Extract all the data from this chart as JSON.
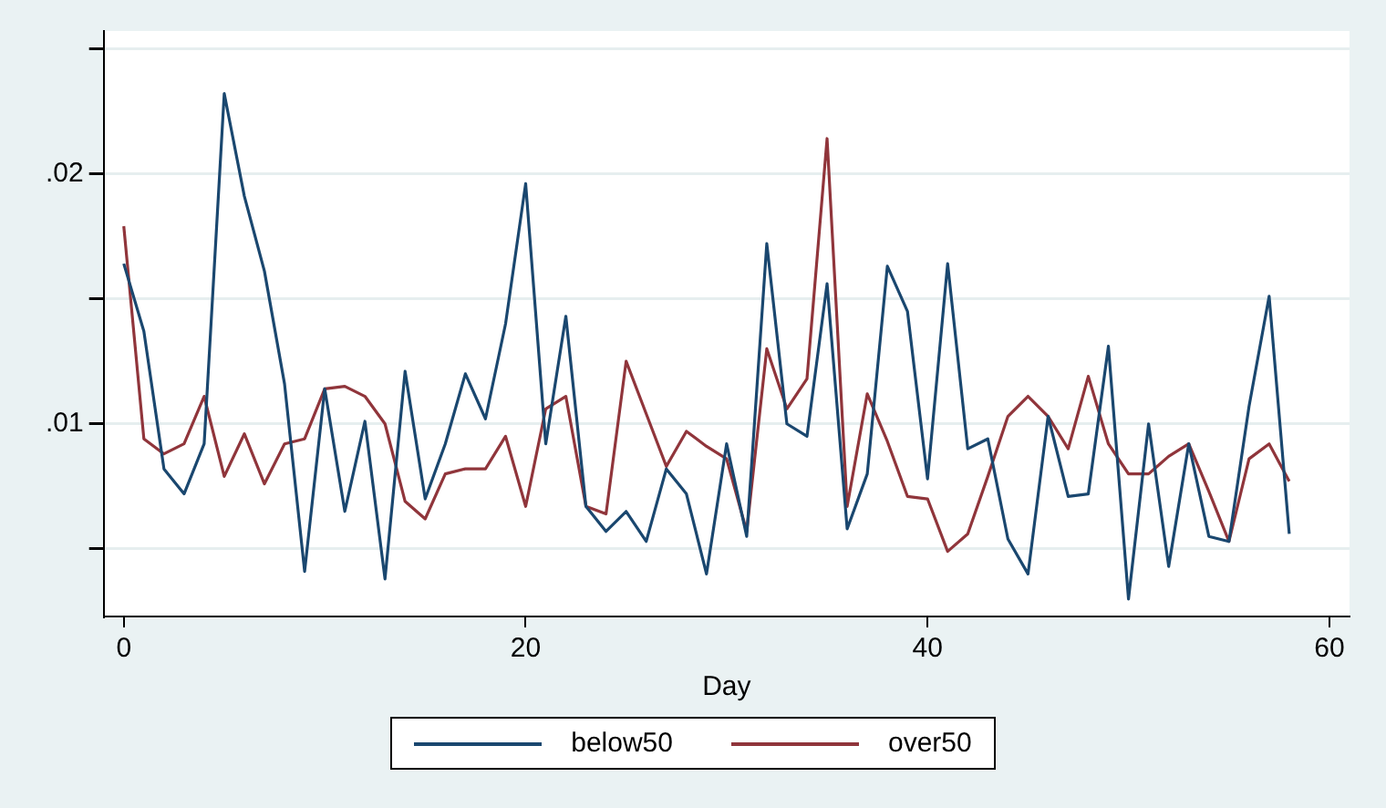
{
  "chart_data": {
    "type": "line",
    "xlabel": "Day",
    "x": [
      0,
      1,
      2,
      3,
      4,
      5,
      6,
      7,
      8,
      9,
      10,
      11,
      12,
      13,
      14,
      15,
      16,
      17,
      18,
      19,
      20,
      21,
      22,
      23,
      24,
      25,
      26,
      27,
      28,
      29,
      30,
      31,
      32,
      33,
      34,
      35,
      36,
      37,
      38,
      39,
      40,
      41,
      42,
      43,
      44,
      45,
      46,
      47,
      48,
      49,
      50,
      51,
      52,
      53,
      54,
      55,
      56,
      57,
      58
    ],
    "series": [
      {
        "name": "below50",
        "color": "#1a476f",
        "values": [
          0.0164,
          0.0137,
          0.0082,
          0.0072,
          0.0092,
          0.0232,
          0.0191,
          0.0161,
          0.0116,
          0.0041,
          0.0114,
          0.0065,
          0.0101,
          0.0038,
          0.0121,
          0.007,
          0.0092,
          0.012,
          0.0102,
          0.014,
          0.0196,
          0.0092,
          0.0143,
          0.0067,
          0.0057,
          0.0065,
          0.0053,
          0.0082,
          0.0072,
          0.004,
          0.0092,
          0.0055,
          0.0172,
          0.01,
          0.0095,
          0.0156,
          0.0058,
          0.008,
          0.0163,
          0.0145,
          0.0078,
          0.0164,
          0.009,
          0.0094,
          0.0054,
          0.004,
          0.0103,
          0.0071,
          0.0072,
          0.0131,
          0.003,
          0.01,
          0.0043,
          0.0092,
          0.0055,
          0.0053,
          0.0107,
          0.0151,
          0.0056
        ]
      },
      {
        "name": "over50",
        "color": "#90353b",
        "values": [
          0.0179,
          0.0094,
          0.0088,
          0.0092,
          0.0111,
          0.0079,
          0.0096,
          0.0076,
          0.0092,
          0.0094,
          0.0114,
          0.0115,
          0.0111,
          0.01,
          0.0069,
          0.0062,
          0.008,
          0.0082,
          0.0082,
          0.0095,
          0.0067,
          0.0106,
          0.0111,
          0.0067,
          0.0064,
          0.0125,
          0.0104,
          0.0083,
          0.0097,
          0.0091,
          0.0086,
          0.0057,
          0.013,
          0.0106,
          0.0118,
          0.0214,
          0.0067,
          0.0112,
          0.0093,
          0.0071,
          0.007,
          0.0049,
          0.0056,
          0.0079,
          0.0103,
          0.0111,
          0.0103,
          0.009,
          0.0119,
          0.0092,
          0.008,
          0.008,
          0.0087,
          0.0092,
          0.0073,
          0.0053,
          0.0086,
          0.0092,
          0.0077
        ]
      }
    ],
    "xlim": [
      -1,
      61
    ],
    "xticks": [
      0,
      20,
      40,
      60
    ],
    "ylim": [
      0.0023,
      0.0257
    ],
    "yticks": [
      {
        "value": 0.005,
        "label": null
      },
      {
        "value": 0.01,
        "label": ".01"
      },
      {
        "value": 0.015,
        "label": null
      },
      {
        "value": 0.02,
        "label": ".02"
      },
      {
        "value": 0.025,
        "label": null
      }
    ],
    "grid": "y",
    "legend": "bottom",
    "marker": "none",
    "line_style": "solid"
  }
}
